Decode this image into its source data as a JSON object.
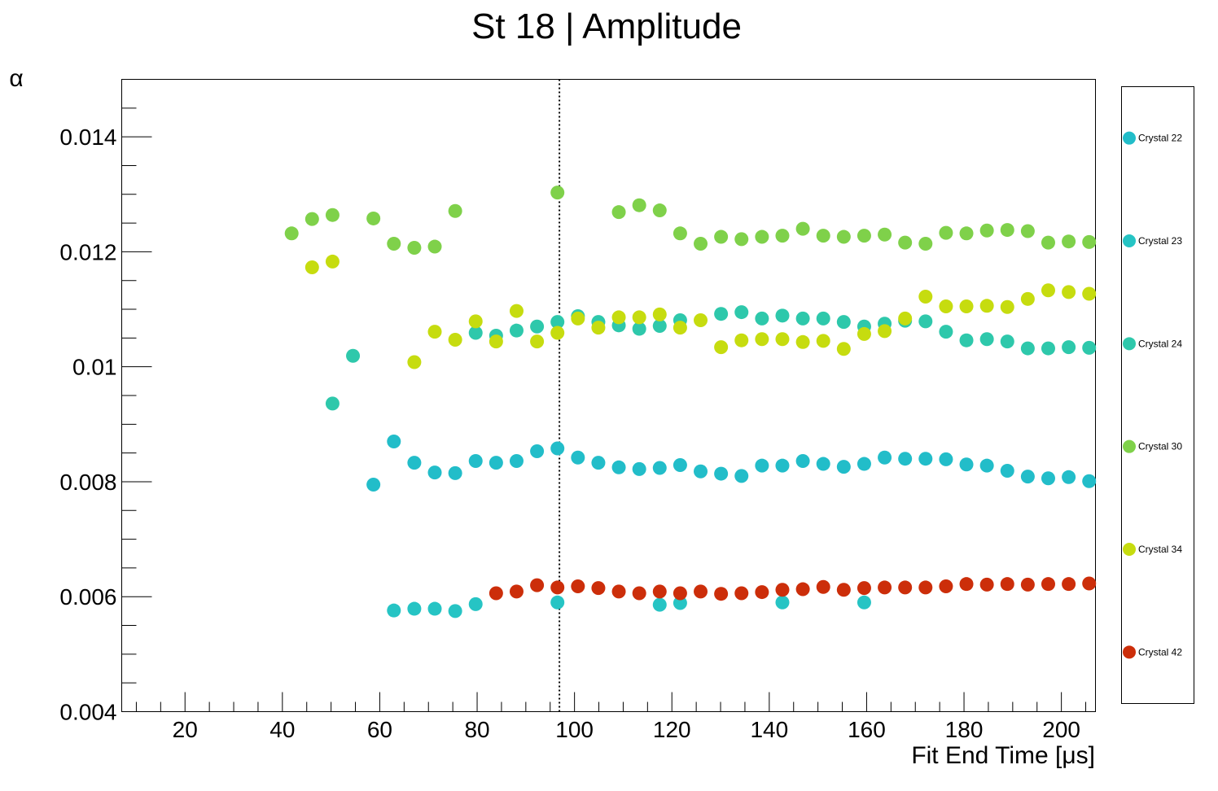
{
  "chart_data": {
    "type": "scatter",
    "title": "St 18 | Amplitude",
    "xlabel": "Fit End Time [μs]",
    "ylabel": "α",
    "xlim": [
      7,
      207
    ],
    "ylim": [
      0.004,
      0.015
    ],
    "x_ticks": [
      20,
      40,
      60,
      80,
      100,
      120,
      140,
      160,
      180,
      200
    ],
    "x_tick_labels": [
      "20",
      "40",
      "60",
      "80",
      "100",
      "120",
      "140",
      "160",
      "180",
      "200"
    ],
    "y_ticks": [
      0.004,
      0.006,
      0.008,
      0.01,
      0.012,
      0.014
    ],
    "y_tick_labels": [
      "0.004",
      "0.006",
      "0.008",
      "0.01",
      "0.012",
      "0.014"
    ],
    "grid": false,
    "legend_position": "right",
    "vertical_line": {
      "x": 96.9,
      "style": "dotted"
    },
    "series": [
      {
        "name": "Crystal 22",
        "color": "#22bdc9",
        "points": [
          [
            58.7,
            0.00795
          ],
          [
            62.9,
            0.0087
          ],
          [
            67.1,
            0.00833
          ],
          [
            71.3,
            0.00816
          ],
          [
            75.5,
            0.00815
          ],
          [
            79.7,
            0.00836
          ],
          [
            83.9,
            0.00833
          ],
          [
            88.1,
            0.00836
          ],
          [
            92.3,
            0.00853
          ],
          [
            96.5,
            0.00858
          ],
          [
            100.7,
            0.00842
          ],
          [
            104.9,
            0.00833
          ],
          [
            109.1,
            0.00825
          ],
          [
            113.3,
            0.00822
          ],
          [
            117.5,
            0.00824
          ],
          [
            121.7,
            0.00829
          ],
          [
            125.9,
            0.00818
          ],
          [
            130.1,
            0.00814
          ],
          [
            134.3,
            0.0081
          ],
          [
            138.5,
            0.00828
          ],
          [
            142.7,
            0.00828
          ],
          [
            146.9,
            0.00836
          ],
          [
            151.1,
            0.00831
          ],
          [
            155.3,
            0.00826
          ],
          [
            159.5,
            0.00831
          ],
          [
            163.7,
            0.00842
          ],
          [
            167.9,
            0.0084
          ],
          [
            172.1,
            0.0084
          ],
          [
            176.3,
            0.00839
          ],
          [
            180.5,
            0.0083
          ],
          [
            184.7,
            0.00828
          ],
          [
            188.9,
            0.00819
          ],
          [
            193.1,
            0.00809
          ],
          [
            197.3,
            0.00806
          ],
          [
            201.5,
            0.00808
          ],
          [
            205.7,
            0.00801
          ]
        ]
      },
      {
        "name": "Crystal 23",
        "color": "#26c4c4",
        "points": [
          [
            62.9,
            0.00576
          ],
          [
            67.1,
            0.00579
          ],
          [
            71.3,
            0.00579
          ],
          [
            75.5,
            0.00575
          ],
          [
            79.7,
            0.00587
          ],
          [
            96.5,
            0.0059
          ],
          [
            117.5,
            0.00586
          ],
          [
            121.7,
            0.00589
          ],
          [
            142.7,
            0.0059
          ],
          [
            159.5,
            0.0059
          ]
        ]
      },
      {
        "name": "Crystal 24",
        "color": "#2ec8ab",
        "points": [
          [
            50.3,
            0.00936
          ],
          [
            54.5,
            0.01019
          ],
          [
            79.7,
            0.01059
          ],
          [
            83.9,
            0.01054
          ],
          [
            88.1,
            0.01063
          ],
          [
            92.3,
            0.0107
          ],
          [
            96.5,
            0.01078
          ],
          [
            100.7,
            0.01088
          ],
          [
            104.9,
            0.01078
          ],
          [
            109.1,
            0.01072
          ],
          [
            113.3,
            0.01066
          ],
          [
            117.5,
            0.01071
          ],
          [
            121.7,
            0.01081
          ],
          [
            130.1,
            0.01092
          ],
          [
            134.3,
            0.01095
          ],
          [
            138.5,
            0.01084
          ],
          [
            142.7,
            0.01089
          ],
          [
            146.9,
            0.01084
          ],
          [
            151.1,
            0.01084
          ],
          [
            155.3,
            0.01078
          ],
          [
            159.5,
            0.0107
          ],
          [
            163.7,
            0.01075
          ],
          [
            167.9,
            0.0108
          ],
          [
            172.1,
            0.01079
          ],
          [
            176.3,
            0.01061
          ],
          [
            180.5,
            0.01046
          ],
          [
            184.7,
            0.01048
          ],
          [
            188.9,
            0.01044
          ],
          [
            193.1,
            0.01032
          ],
          [
            197.3,
            0.01032
          ],
          [
            201.5,
            0.01034
          ],
          [
            205.7,
            0.01033
          ]
        ]
      },
      {
        "name": "Crystal 30",
        "color": "#7fd14a",
        "points": [
          [
            41.9,
            0.01232
          ],
          [
            46.1,
            0.01257
          ],
          [
            50.3,
            0.01264
          ],
          [
            58.7,
            0.01258
          ],
          [
            62.9,
            0.01214
          ],
          [
            67.1,
            0.01207
          ],
          [
            71.3,
            0.01209
          ],
          [
            75.5,
            0.01271
          ],
          [
            96.5,
            0.01303
          ],
          [
            109.1,
            0.01269
          ],
          [
            113.3,
            0.01281
          ],
          [
            117.5,
            0.01272
          ],
          [
            121.7,
            0.01232
          ],
          [
            125.9,
            0.01214
          ],
          [
            130.1,
            0.01226
          ],
          [
            134.3,
            0.01222
          ],
          [
            138.5,
            0.01226
          ],
          [
            142.7,
            0.01228
          ],
          [
            146.9,
            0.0124
          ],
          [
            151.1,
            0.01228
          ],
          [
            155.3,
            0.01226
          ],
          [
            159.5,
            0.01228
          ],
          [
            163.7,
            0.0123
          ],
          [
            167.9,
            0.01216
          ],
          [
            172.1,
            0.01214
          ],
          [
            176.3,
            0.01233
          ],
          [
            180.5,
            0.01232
          ],
          [
            184.7,
            0.01237
          ],
          [
            188.9,
            0.01238
          ],
          [
            193.1,
            0.01236
          ],
          [
            197.3,
            0.01216
          ],
          [
            201.5,
            0.01218
          ],
          [
            205.7,
            0.01217
          ]
        ]
      },
      {
        "name": "Crystal 34",
        "color": "#c6dc0f",
        "points": [
          [
            46.1,
            0.01173
          ],
          [
            50.3,
            0.01183
          ],
          [
            67.1,
            0.01008
          ],
          [
            71.3,
            0.01061
          ],
          [
            75.5,
            0.01047
          ],
          [
            79.7,
            0.01079
          ],
          [
            83.9,
            0.01044
          ],
          [
            88.1,
            0.01097
          ],
          [
            92.3,
            0.01044
          ],
          [
            96.5,
            0.01059
          ],
          [
            100.7,
            0.01084
          ],
          [
            104.9,
            0.01068
          ],
          [
            109.1,
            0.01086
          ],
          [
            113.3,
            0.01086
          ],
          [
            117.5,
            0.01091
          ],
          [
            121.7,
            0.01068
          ],
          [
            125.9,
            0.01081
          ],
          [
            130.1,
            0.01034
          ],
          [
            134.3,
            0.01046
          ],
          [
            138.5,
            0.01048
          ],
          [
            142.7,
            0.01048
          ],
          [
            146.9,
            0.01043
          ],
          [
            151.1,
            0.01045
          ],
          [
            155.3,
            0.01031
          ],
          [
            159.5,
            0.01057
          ],
          [
            163.7,
            0.01062
          ],
          [
            167.9,
            0.01084
          ],
          [
            172.1,
            0.01122
          ],
          [
            176.3,
            0.01105
          ],
          [
            180.5,
            0.01105
          ],
          [
            184.7,
            0.01106
          ],
          [
            188.9,
            0.01104
          ],
          [
            193.1,
            0.01118
          ],
          [
            197.3,
            0.01133
          ],
          [
            201.5,
            0.0113
          ],
          [
            205.7,
            0.01127
          ]
        ]
      },
      {
        "name": "Crystal 42",
        "color": "#cc2e0a",
        "points": [
          [
            83.9,
            0.00606
          ],
          [
            88.1,
            0.00609
          ],
          [
            92.3,
            0.0062
          ],
          [
            96.5,
            0.00616
          ],
          [
            100.7,
            0.00618
          ],
          [
            104.9,
            0.00615
          ],
          [
            109.1,
            0.00609
          ],
          [
            113.3,
            0.00606
          ],
          [
            117.5,
            0.00609
          ],
          [
            121.7,
            0.00606
          ],
          [
            125.9,
            0.00609
          ],
          [
            130.1,
            0.00605
          ],
          [
            134.3,
            0.00606
          ],
          [
            138.5,
            0.00608
          ],
          [
            142.7,
            0.00612
          ],
          [
            146.9,
            0.00613
          ],
          [
            151.1,
            0.00617
          ],
          [
            155.3,
            0.00612
          ],
          [
            159.5,
            0.00615
          ],
          [
            163.7,
            0.00616
          ],
          [
            167.9,
            0.00616
          ],
          [
            172.1,
            0.00616
          ],
          [
            176.3,
            0.00618
          ],
          [
            180.5,
            0.00622
          ],
          [
            184.7,
            0.00621
          ],
          [
            188.9,
            0.00622
          ],
          [
            193.1,
            0.00621
          ],
          [
            197.3,
            0.00622
          ],
          [
            201.5,
            0.00622
          ],
          [
            205.7,
            0.00623
          ]
        ]
      }
    ]
  }
}
